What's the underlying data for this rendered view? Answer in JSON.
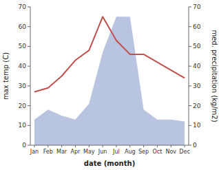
{
  "chart_data": {
    "type": "line",
    "x_label": "date (month)",
    "y_label": "max temp (C)",
    "y2_label": "med. precipitation (kg/m2)",
    "categories": [
      "Jan",
      "Feb",
      "Mar",
      "Apr",
      "May",
      "Jun",
      "Jul",
      "Aug",
      "Sep",
      "Oct",
      "Nov",
      "Dec"
    ],
    "series": [
      {
        "type": "area",
        "axis": "y2",
        "color": "#b8c4e0",
        "values": [
          13,
          18,
          15,
          13,
          21,
          47,
          65,
          65,
          18,
          13,
          13,
          12
        ]
      },
      {
        "type": "line",
        "color": "#c0504d",
        "values": [
          27,
          29,
          35,
          43,
          48,
          65,
          53,
          46,
          46,
          42,
          38,
          34
        ]
      }
    ],
    "ylim": [
      0,
      70
    ],
    "yticks": [
      0,
      10,
      20,
      30,
      40,
      50,
      60,
      70
    ],
    "y2lim": [
      0,
      70
    ],
    "y2ticks": [
      0,
      10,
      20,
      30,
      40,
      50,
      60,
      70
    ],
    "grid": false
  }
}
